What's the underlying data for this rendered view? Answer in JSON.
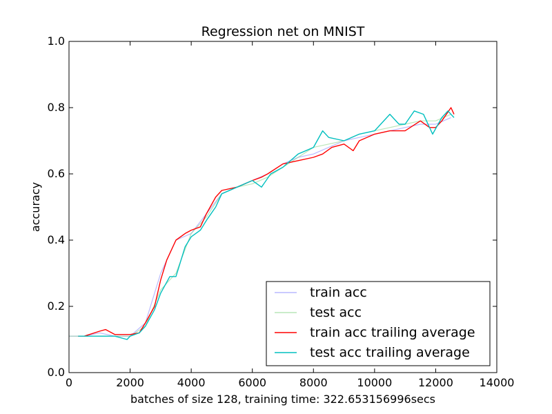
{
  "chart_data": {
    "type": "line",
    "title": "Regression net on MNIST",
    "xlabel": "batches of size 128, training time: 322.653156996secs",
    "ylabel": "accuracy",
    "xlim": [
      0,
      14000
    ],
    "ylim": [
      0.0,
      1.0
    ],
    "xticks": [
      0,
      2000,
      4000,
      6000,
      8000,
      10000,
      12000,
      14000
    ],
    "yticks": [
      0.0,
      0.2,
      0.4,
      0.6,
      0.8,
      1.0
    ],
    "xtick_labels": [
      "0",
      "2000",
      "4000",
      "6000",
      "8000",
      "10000",
      "12000",
      "14000"
    ],
    "ytick_labels": [
      "0.0",
      "0.2",
      "0.4",
      "0.6",
      "0.8",
      "1.0"
    ],
    "grid": false,
    "legend_position": "lower-right",
    "series": [
      {
        "name": "train acc",
        "color": "#8080ff",
        "opacity": 0.55,
        "x": [
          0,
          500,
          1000,
          1500,
          2000,
          2500,
          3000,
          3500,
          4000,
          4500,
          5000,
          5500,
          6000,
          6500,
          7000,
          7500,
          8000,
          8500,
          9000,
          9500,
          10000,
          10500,
          11000,
          11500,
          12000,
          12500
        ],
        "values": [
          0.11,
          0.11,
          0.12,
          0.11,
          0.11,
          0.15,
          0.3,
          0.4,
          0.42,
          0.48,
          0.54,
          0.56,
          0.58,
          0.6,
          0.63,
          0.65,
          0.66,
          0.68,
          0.7,
          0.71,
          0.72,
          0.73,
          0.74,
          0.75,
          0.75,
          0.77
        ]
      },
      {
        "name": "test acc",
        "color": "#80d080",
        "opacity": 0.55,
        "x": [
          0,
          500,
          1000,
          1500,
          2000,
          2500,
          3000,
          3500,
          4000,
          4500,
          5000,
          5500,
          6000,
          6500,
          7000,
          7500,
          8000,
          8500,
          9000,
          9500,
          10000,
          10500,
          11000,
          11500,
          12000,
          12500
        ],
        "values": [
          0.11,
          0.11,
          0.11,
          0.11,
          0.11,
          0.14,
          0.25,
          0.3,
          0.42,
          0.47,
          0.54,
          0.56,
          0.57,
          0.59,
          0.62,
          0.65,
          0.68,
          0.69,
          0.7,
          0.72,
          0.73,
          0.74,
          0.75,
          0.76,
          0.76,
          0.78
        ]
      },
      {
        "name": "train acc trailing average",
        "color": "#ff0000",
        "opacity": 1,
        "x": [
          300,
          500,
          1000,
          1200,
          1500,
          2000,
          2300,
          2500,
          2800,
          3000,
          3200,
          3500,
          3800,
          4000,
          4300,
          4500,
          4800,
          5000,
          5500,
          6000,
          6300,
          6500,
          7000,
          7500,
          8000,
          8300,
          8600,
          9000,
          9300,
          9500,
          10000,
          10500,
          11000,
          11500,
          11800,
          12000,
          12200,
          12500,
          12600
        ],
        "values": [
          0.11,
          0.11,
          0.125,
          0.13,
          0.115,
          0.115,
          0.12,
          0.15,
          0.2,
          0.28,
          0.34,
          0.4,
          0.42,
          0.43,
          0.44,
          0.48,
          0.53,
          0.55,
          0.56,
          0.58,
          0.59,
          0.6,
          0.63,
          0.64,
          0.65,
          0.66,
          0.68,
          0.69,
          0.67,
          0.7,
          0.72,
          0.73,
          0.73,
          0.76,
          0.74,
          0.74,
          0.76,
          0.8,
          0.78
        ]
      },
      {
        "name": "test acc trailing average",
        "color": "#00bfbf",
        "opacity": 1,
        "x": [
          300,
          500,
          1000,
          1500,
          1900,
          2000,
          2300,
          2500,
          2800,
          3000,
          3300,
          3500,
          3800,
          4000,
          4300,
          4500,
          4800,
          5000,
          5500,
          6000,
          6300,
          6600,
          7000,
          7500,
          8000,
          8300,
          8500,
          9000,
          9500,
          10000,
          10500,
          10800,
          11000,
          11300,
          11600,
          11900,
          12200,
          12400,
          12600
        ],
        "values": [
          0.11,
          0.11,
          0.11,
          0.11,
          0.1,
          0.11,
          0.12,
          0.14,
          0.19,
          0.24,
          0.29,
          0.29,
          0.38,
          0.41,
          0.43,
          0.46,
          0.5,
          0.54,
          0.56,
          0.58,
          0.56,
          0.6,
          0.62,
          0.66,
          0.68,
          0.73,
          0.71,
          0.7,
          0.72,
          0.73,
          0.78,
          0.75,
          0.75,
          0.79,
          0.78,
          0.72,
          0.77,
          0.79,
          0.77
        ]
      }
    ]
  }
}
